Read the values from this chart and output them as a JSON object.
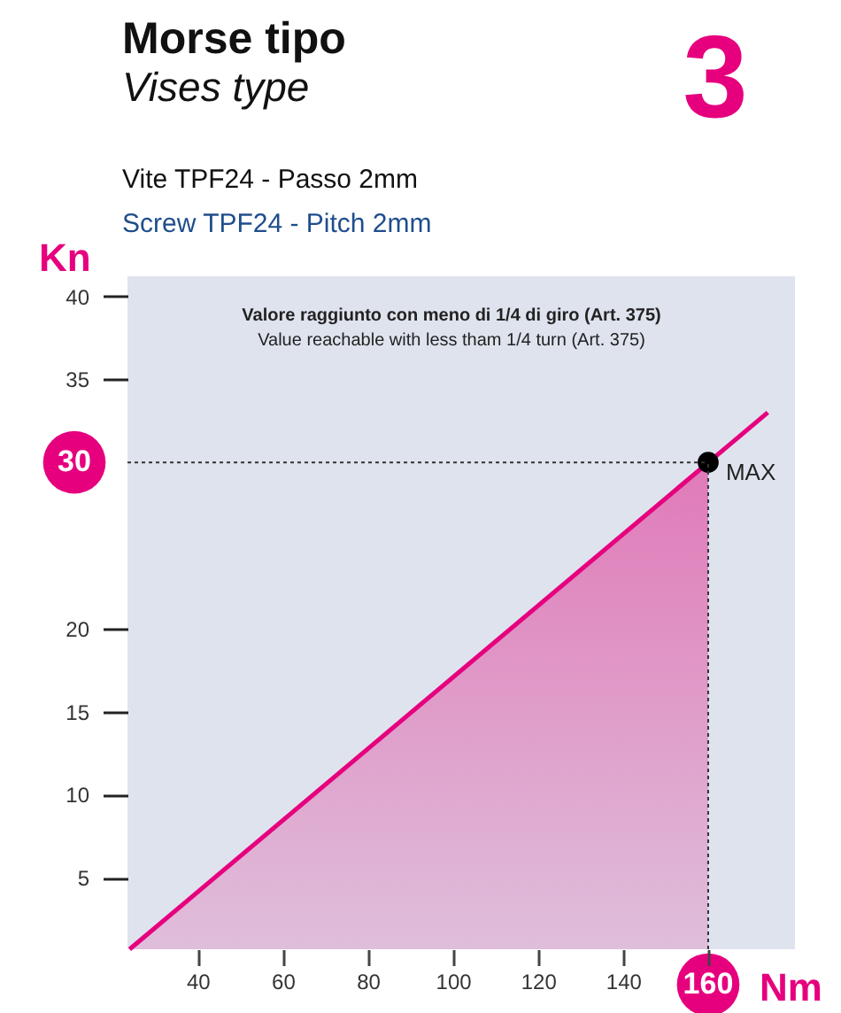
{
  "chart_data": {
    "type": "line",
    "title": "Morse tipo",
    "subtitle": "Vises type",
    "xlabel": "Nm",
    "ylabel": "Kn",
    "xlim": [
      23.5,
      180.4
    ],
    "ylim": [
      0.7,
      41.2
    ],
    "xticks": [
      40,
      60,
      80,
      100,
      120,
      140,
      {
        "value": 160,
        "label": null
      }
    ],
    "yticks": [
      5,
      10,
      15,
      20,
      35,
      40
    ],
    "series": [
      {
        "type": "area",
        "color": "#e07ab8",
        "x": [
          24,
          160
        ],
        "values": [
          0.7,
          30
        ]
      },
      {
        "color": "#e6007e",
        "x": [
          24,
          174
        ],
        "values": [
          0.7,
          33
        ]
      },
      {
        "type": "scatter",
        "color": "#000000",
        "x": [
          160
        ],
        "values": [
          30
        ]
      }
    ],
    "ref_lines": [
      {
        "axis": "y",
        "value": 30,
        "label": "30",
        "line_style": "dotted"
      },
      {
        "axis": "x",
        "value": 160,
        "label": "160",
        "line_style": "dotted"
      }
    ],
    "annotations": [
      "3",
      "Vite TPF24 - Passo 2mm",
      "Screw TPF24  - Pitch 2mm",
      "Valore raggiunto con meno di 1/4 di giro (Art. 375)",
      "Value reachable with less tham 1/4 turn (Art. 375)",
      {
        "text": "MAX",
        "x": 160,
        "y": 30
      }
    ],
    "grid": false
  }
}
